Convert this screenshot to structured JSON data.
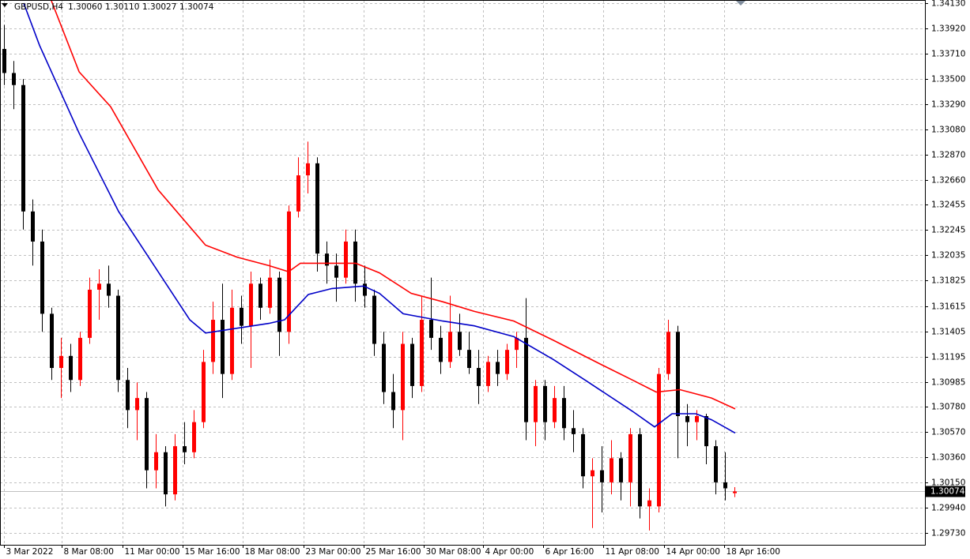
{
  "chart_data": {
    "type": "candlestick",
    "title": "GBPUSD,H4",
    "last_bar_labels": [
      "1.30060",
      "1.30110",
      "1.30027",
      "1.30074"
    ],
    "last_price": {
      "value": 1.30074,
      "label": "1.30074"
    },
    "bull_color": "#ff0000",
    "bear_color": "#000000",
    "grid": true,
    "open": [
      1.3375,
      1.3355,
      1.3345,
      1.324,
      1.3215,
      1.3155,
      1.311,
      1.312,
      1.31,
      1.3135,
      1.3175,
      1.318,
      1.317,
      1.31,
      1.3075,
      1.3085,
      1.3025,
      1.304,
      1.3005,
      1.3045,
      1.304,
      1.3065,
      1.3115,
      1.315,
      1.3105,
      1.316,
      1.3145,
      1.318,
      1.316,
      1.3185,
      1.314,
      1.324,
      1.327,
      1.328,
      1.3205,
      1.3195,
      1.3185,
      1.3215,
      1.318,
      1.317,
      1.313,
      1.309,
      1.3075,
      1.313,
      1.3095,
      1.315,
      1.3135,
      1.3115,
      1.314,
      1.3125,
      1.311,
      1.3095,
      1.3115,
      1.3105,
      1.3125,
      1.3135,
      1.3065,
      1.3095,
      1.3065,
      1.3085,
      1.306,
      1.3055,
      1.302,
      1.3025,
      1.3015,
      1.3035,
      1.3015,
      1.3055,
      1.2995,
      1.2995,
      1.3105,
      1.314,
      1.307,
      1.3065,
      1.307,
      1.3045,
      1.3015,
      1.3006
    ],
    "high": [
      1.3395,
      1.3365,
      1.335,
      1.325,
      1.3225,
      1.316,
      1.3135,
      1.313,
      1.314,
      1.3185,
      1.3192,
      1.3195,
      1.3175,
      1.311,
      1.3098,
      1.309,
      1.3055,
      1.3045,
      1.3055,
      1.3065,
      1.3075,
      1.3125,
      1.3165,
      1.318,
      1.3175,
      1.317,
      1.319,
      1.3185,
      1.32,
      1.319,
      1.3245,
      1.3285,
      1.3298,
      1.3285,
      1.3215,
      1.3205,
      1.3225,
      1.3225,
      1.3195,
      1.3175,
      1.314,
      1.3105,
      1.314,
      1.3135,
      1.317,
      1.3185,
      1.3145,
      1.317,
      1.3155,
      1.314,
      1.3125,
      1.312,
      1.3125,
      1.313,
      1.314,
      1.3168,
      1.31,
      1.31,
      1.3095,
      1.3095,
      1.3075,
      1.306,
      1.3035,
      1.3045,
      1.305,
      1.304,
      1.306,
      1.306,
      1.301,
      1.311,
      1.315,
      1.3145,
      1.308,
      1.3075,
      1.3072,
      1.305,
      1.304,
      1.3011
    ],
    "low": [
      1.3345,
      1.3325,
      1.3225,
      1.3195,
      1.314,
      1.31,
      1.3085,
      1.309,
      1.3095,
      1.313,
      1.315,
      1.316,
      1.309,
      1.306,
      1.305,
      1.301,
      1.301,
      1.2995,
      1.3,
      1.303,
      1.3035,
      1.306,
      1.3105,
      1.3085,
      1.31,
      1.313,
      1.311,
      1.315,
      1.3155,
      1.312,
      1.313,
      1.3235,
      1.3255,
      1.319,
      1.318,
      1.3165,
      1.318,
      1.3165,
      1.316,
      1.312,
      1.308,
      1.306,
      1.305,
      1.3085,
      1.309,
      1.3125,
      1.3105,
      1.311,
      1.312,
      1.3105,
      1.308,
      1.309,
      1.3095,
      1.31,
      1.311,
      1.305,
      1.3045,
      1.305,
      1.306,
      1.305,
      1.304,
      1.301,
      1.2977,
      1.299,
      1.3005,
      1.3,
      1.2995,
      1.2985,
      1.2975,
      1.299,
      1.31,
      1.3035,
      1.3045,
      1.305,
      1.303,
      1.3005,
      1.3,
      1.30027
    ],
    "close": [
      1.3355,
      1.3345,
      1.324,
      1.3215,
      1.3155,
      1.311,
      1.312,
      1.31,
      1.3135,
      1.3175,
      1.318,
      1.317,
      1.31,
      1.3075,
      1.3085,
      1.3025,
      1.304,
      1.3005,
      1.3045,
      1.304,
      1.3065,
      1.3115,
      1.315,
      1.3105,
      1.316,
      1.3145,
      1.318,
      1.316,
      1.3185,
      1.314,
      1.324,
      1.327,
      1.328,
      1.3205,
      1.3195,
      1.3185,
      1.3215,
      1.318,
      1.317,
      1.313,
      1.309,
      1.3075,
      1.313,
      1.3095,
      1.315,
      1.3135,
      1.3115,
      1.314,
      1.3125,
      1.311,
      1.3095,
      1.3115,
      1.3105,
      1.3125,
      1.3135,
      1.3065,
      1.3095,
      1.3065,
      1.3085,
      1.306,
      1.3055,
      1.302,
      1.3025,
      1.3015,
      1.3035,
      1.3015,
      1.3055,
      1.2995,
      1.3,
      1.3105,
      1.314,
      1.307,
      1.3065,
      1.307,
      1.3045,
      1.3015,
      1.301,
      1.30074
    ],
    "ma_lines": [
      {
        "color": "#ff0000",
        "x": [
          5,
          7.92,
          11.25,
          16.25,
          21.25,
          24.58,
          27.92,
          30,
          31.25,
          37.08,
          39.58,
          42.92,
          46.25,
          49.58,
          53.75,
          57.92,
          62.92,
          66.25,
          68.75,
          71.25,
          74.58,
          77.08
        ],
        "values": [
          1.3415,
          1.3356,
          1.3327,
          1.3258,
          1.3212,
          1.3202,
          1.3195,
          1.319,
          1.3197,
          1.3197,
          1.3189,
          1.3172,
          1.3165,
          1.3157,
          1.3149,
          1.3133,
          1.3113,
          1.31,
          1.309,
          1.3092,
          1.3085,
          1.3076
        ]
      },
      {
        "color": "#0000c8",
        "x": [
          2.08,
          3.75,
          7.92,
          12.08,
          16.25,
          19.58,
          21.25,
          24.58,
          27.92,
          29.58,
          32.08,
          34.58,
          37.92,
          39.58,
          42.08,
          46.25,
          49.58,
          53.75,
          57.92,
          61.25,
          66.25,
          68.58,
          70.42,
          72.92,
          74.58,
          77.08
        ],
        "values": [
          1.3413,
          1.3378,
          1.3305,
          1.324,
          1.319,
          1.315,
          1.3139,
          1.3143,
          1.3147,
          1.315,
          1.3171,
          1.3176,
          1.3178,
          1.3172,
          1.3155,
          1.3149,
          1.3145,
          1.3136,
          1.3117,
          1.31,
          1.3074,
          1.3061,
          1.3072,
          1.3072,
          1.3067,
          1.3056
        ]
      }
    ],
    "xlim": [
      -0.42,
      97.08
    ],
    "xticks": [
      {
        "value": 0,
        "label": "3 Mar 2022"
      },
      {
        "value": 6.1,
        "label": "8 Mar 08:00"
      },
      {
        "value": 12.5,
        "label": "11 Mar 00:00"
      },
      {
        "value": 18.8,
        "label": "15 Mar 16:00"
      },
      {
        "value": 25.2,
        "label": "18 Mar 08:00"
      },
      {
        "value": 31.6,
        "label": "23 Mar 00:00"
      },
      {
        "value": 37.9,
        "label": "25 Mar 16:00"
      },
      {
        "value": 44.25,
        "label": "30 Mar 08:00"
      },
      {
        "value": 50.5,
        "label": "4 Apr 00:00"
      },
      {
        "value": 56.8,
        "label": "6 Apr 16:00"
      },
      {
        "value": 63.2,
        "label": "11 Apr 08:00"
      },
      {
        "value": 69.6,
        "label": "14 Apr 00:00"
      },
      {
        "value": 75.9,
        "label": "18 Apr 16:00"
      }
    ],
    "ylim": [
      1.29631,
      1.3415
    ],
    "yticks": [
      {
        "value": 1.3413,
        "label": "1.34130"
      },
      {
        "value": 1.3392,
        "label": "1.33920"
      },
      {
        "value": 1.3371,
        "label": "1.33710"
      },
      {
        "value": 1.335,
        "label": "1.33500"
      },
      {
        "value": 1.3329,
        "label": "1.33290"
      },
      {
        "value": 1.3308,
        "label": "1.33080"
      },
      {
        "value": 1.3287,
        "label": "1.32870"
      },
      {
        "value": 1.3266,
        "label": "1.32660"
      },
      1.32455,
      1.32245,
      1.32035,
      1.31825,
      1.31615,
      1.31405,
      1.31195,
      1.30985,
      {
        "value": 1.3078,
        "label": "1.30780"
      },
      {
        "value": 1.3057,
        "label": "1.30570"
      },
      {
        "value": 1.3036,
        "label": "1.30360"
      },
      {
        "value": 1.3015,
        "label": "1.30150"
      },
      {
        "value": 1.2994,
        "label": "1.29940"
      },
      {
        "value": 1.2973,
        "label": "1.29730"
      }
    ]
  }
}
